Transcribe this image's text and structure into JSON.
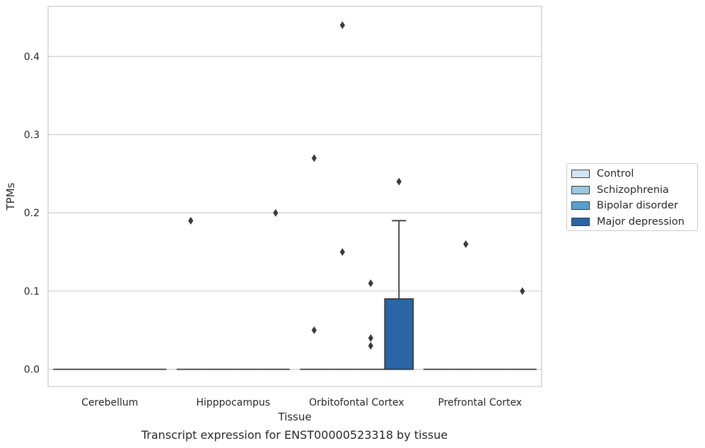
{
  "chart_data": {
    "type": "box",
    "xlabel": "Tissue",
    "ylabel": "TPMs",
    "caption": "Transcript expression for ENST00000523318 by tissue",
    "ylim": [
      -0.022,
      0.464
    ],
    "yticks": [
      0.0,
      0.1,
      0.2,
      0.3,
      0.4
    ],
    "ytick_labels": [
      "0.0",
      "0.1",
      "0.2",
      "0.3",
      "0.4"
    ],
    "grid": "horizontal",
    "legend_position": "right",
    "categories": [
      "Cerebellum",
      "Hipppocampus",
      "Orbitofontal Cortex",
      "Prefrontal Cortex"
    ],
    "series": [
      {
        "name": "Control",
        "color": "#d3e4f3"
      },
      {
        "name": "Schizophrenia",
        "color": "#9ac8e0"
      },
      {
        "name": "Bipolar disorder",
        "color": "#5a9fcd"
      },
      {
        "name": "Major depression",
        "color": "#2866a6"
      }
    ],
    "boxes": [
      {
        "category": 0,
        "series": 0,
        "q1": 0,
        "median": 0,
        "q3": 0,
        "whislo": 0,
        "whishi": 0,
        "fliers": []
      },
      {
        "category": 0,
        "series": 1,
        "q1": 0,
        "median": 0,
        "q3": 0,
        "whislo": 0,
        "whishi": 0,
        "fliers": []
      },
      {
        "category": 0,
        "series": 2,
        "q1": 0,
        "median": 0,
        "q3": 0,
        "whislo": 0,
        "whishi": 0,
        "fliers": []
      },
      {
        "category": 0,
        "series": 3,
        "q1": 0,
        "median": 0,
        "q3": 0,
        "whislo": 0,
        "whishi": 0,
        "fliers": []
      },
      {
        "category": 1,
        "series": 0,
        "q1": 0,
        "median": 0,
        "q3": 0,
        "whislo": 0,
        "whishi": 0,
        "fliers": [
          0.19
        ]
      },
      {
        "category": 1,
        "series": 1,
        "q1": 0,
        "median": 0,
        "q3": 0,
        "whislo": 0,
        "whishi": 0,
        "fliers": []
      },
      {
        "category": 1,
        "series": 2,
        "q1": 0,
        "median": 0,
        "q3": 0,
        "whislo": 0,
        "whishi": 0,
        "fliers": []
      },
      {
        "category": 1,
        "series": 3,
        "q1": 0,
        "median": 0,
        "q3": 0,
        "whislo": 0,
        "whishi": 0,
        "fliers": [
          0.2
        ]
      },
      {
        "category": 2,
        "series": 0,
        "q1": 0,
        "median": 0,
        "q3": 0,
        "whislo": 0,
        "whishi": 0,
        "fliers": [
          0.27,
          0.05
        ]
      },
      {
        "category": 2,
        "series": 1,
        "q1": 0,
        "median": 0,
        "q3": 0,
        "whislo": 0,
        "whishi": 0,
        "fliers": [
          0.44,
          0.15
        ]
      },
      {
        "category": 2,
        "series": 2,
        "q1": 0,
        "median": 0,
        "q3": 0,
        "whislo": 0,
        "whishi": 0,
        "fliers": [
          0.11,
          0.04,
          0.03
        ]
      },
      {
        "category": 2,
        "series": 3,
        "q1": 0,
        "median": 0,
        "q3": 0.09,
        "whislo": 0,
        "whishi": 0.19,
        "fliers": [
          0.24
        ]
      },
      {
        "category": 3,
        "series": 0,
        "q1": 0,
        "median": 0,
        "q3": 0,
        "whislo": 0,
        "whishi": 0,
        "fliers": []
      },
      {
        "category": 3,
        "series": 1,
        "q1": 0,
        "median": 0,
        "q3": 0,
        "whislo": 0,
        "whishi": 0,
        "fliers": [
          0.16
        ]
      },
      {
        "category": 3,
        "series": 2,
        "q1": 0,
        "median": 0,
        "q3": 0,
        "whislo": 0,
        "whishi": 0,
        "fliers": []
      },
      {
        "category": 3,
        "series": 3,
        "q1": 0,
        "median": 0,
        "q3": 0,
        "whislo": 0,
        "whishi": 0,
        "fliers": [
          0.1
        ]
      }
    ]
  }
}
